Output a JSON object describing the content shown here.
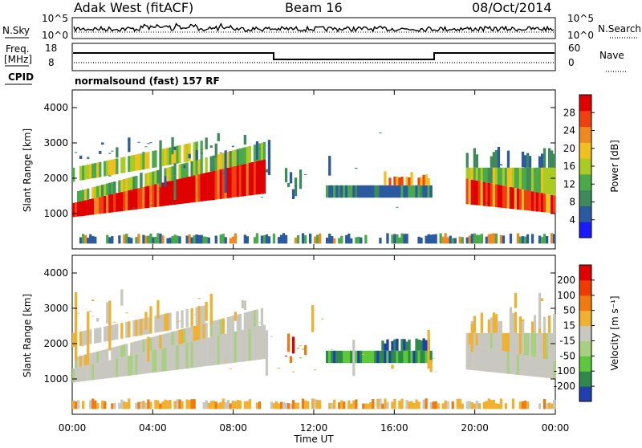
{
  "header": {
    "station": "Adak West (fitACF)",
    "beam": "Beam 16",
    "date": "08/Oct/2014"
  },
  "top_panels": {
    "nsky_label": "N.Sky",
    "nsearch_label": "N.Search",
    "nsky_ticks": [
      "10^5",
      "10^0"
    ],
    "nsky_right_ticks": [
      "10^5",
      "10^0"
    ],
    "freq_label": "Freq.",
    "freq_unit": "[MHz]",
    "freq_ticks": [
      "18",
      "8"
    ],
    "nave_label": "Nave",
    "nave_ticks": [
      "60",
      "0"
    ],
    "cpid_label": "CPID",
    "cpid_text": "normalsound (fast) 157 RF"
  },
  "chart_data": [
    {
      "type": "heatmap",
      "name": "power",
      "ylabel": "Slant Range [km]",
      "y_ticks": [
        "4000",
        "3000",
        "2000",
        "1000"
      ],
      "colorbar_label": "Power [dB]",
      "colorbar_ticks": [
        "28",
        "24",
        "20",
        "16",
        "12",
        "8",
        "4"
      ],
      "colors": [
        "#1a1aff",
        "#2c5aa0",
        "#3e8a5a",
        "#4aaa4a",
        "#aacc22",
        "#f0c020",
        "#f08a20",
        "#f04010",
        "#e00000"
      ],
      "ylim": [
        0,
        4500
      ]
    },
    {
      "type": "heatmap",
      "name": "velocity",
      "ylabel": "Slant Range [km]",
      "y_ticks": [
        "4000",
        "3000",
        "2000",
        "1000"
      ],
      "colorbar_label": "Velocity [m s⁻¹]",
      "colorbar_ticks": [
        "200",
        "100",
        "50",
        "15",
        "-15",
        "-50",
        "-100",
        "-200"
      ],
      "colors": [
        "#2040b0",
        "#2e8a4a",
        "#5cc83a",
        "#a8d080",
        "#c8c8c0",
        "#f0b030",
        "#f07a10",
        "#f03a00",
        "#e00000"
      ],
      "ylim": [
        0,
        4500
      ]
    }
  ],
  "x_axis": {
    "ticks": [
      "00:00",
      "04:00",
      "08:00",
      "12:00",
      "16:00",
      "20:00",
      "00:00"
    ],
    "label": "Time UT"
  }
}
